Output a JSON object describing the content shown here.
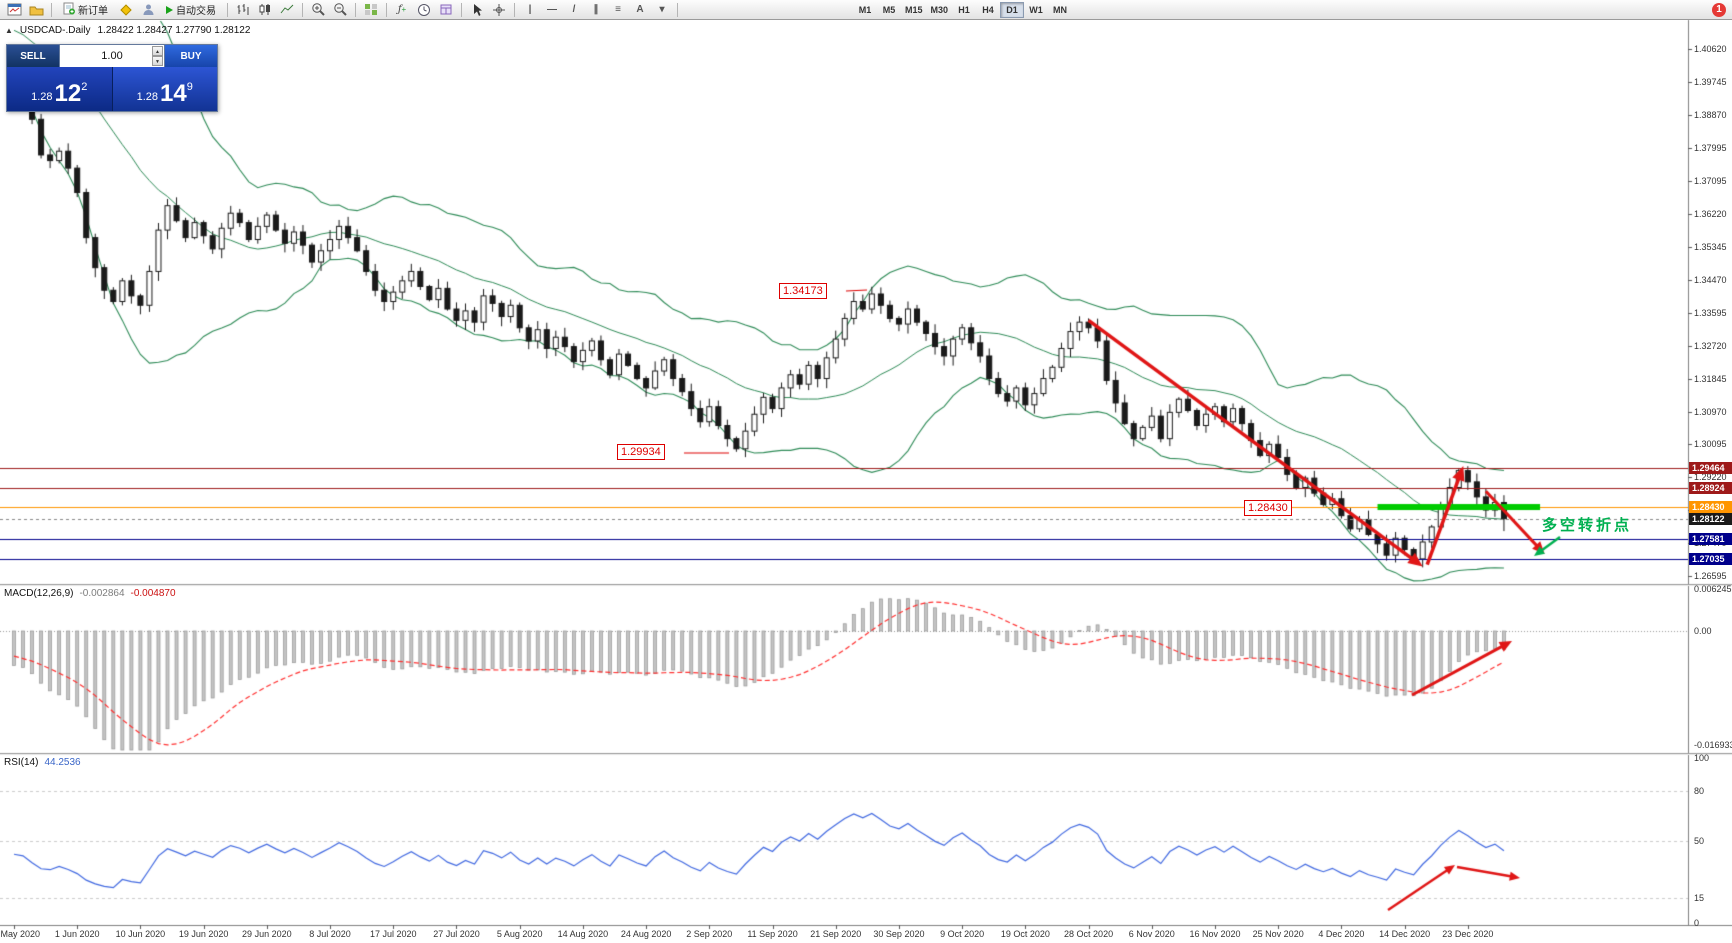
{
  "toolbar": {
    "new_order_label": "新订单",
    "auto_trading_label": "自动交易",
    "timeframes": [
      "M1",
      "M5",
      "M15",
      "M30",
      "H1",
      "H4",
      "D1",
      "W1",
      "MN"
    ],
    "active_timeframe": "D1",
    "notification_badge": "1",
    "tool_glyphs": {
      "vline": "|",
      "hline": "—",
      "trendline": "/",
      "channel": "∥",
      "fibo": "≡",
      "text": "A",
      "arrows": "▾"
    }
  },
  "icons": {
    "collapse": "▲",
    "spin_up": "▲",
    "spin_down": "▼",
    "indicators": "ƒ",
    "indicators_plus": "+"
  },
  "chart": {
    "title": "USDCAD-.Daily",
    "ohlc": "1.28422 1.28427 1.27790 1.28122"
  },
  "trade_panel": {
    "sell_label": "SELL",
    "buy_label": "BUY",
    "volume": "1.00",
    "bid_prefix": "1.28",
    "bid_main": "12",
    "bid_sup": "2",
    "ask_prefix": "1.28",
    "ask_main": "14",
    "ask_sup": "9"
  },
  "price_axis": {
    "labels": [
      "1.40620",
      "1.39745",
      "1.38870",
      "1.37995",
      "1.37095",
      "1.36220",
      "1.35345",
      "1.34470",
      "1.33595",
      "1.32720",
      "1.31845",
      "1.30970",
      "1.30095",
      "1.29220",
      "1.28345",
      "1.27470",
      "1.26595"
    ],
    "tags": [
      {
        "text": "1.29464",
        "price": 1.29464,
        "bg": "#9e1a1a",
        "fg": "#ffffff"
      },
      {
        "text": "1.28924",
        "price": 1.28924,
        "bg": "#9e1a1a",
        "fg": "#ffffff"
      },
      {
        "text": "1.28430",
        "price": 1.2843,
        "bg": "#ff9500",
        "fg": "#ffffff"
      },
      {
        "text": "1.28122",
        "price": 1.28122,
        "bg": "#1a1a1a",
        "fg": "#ffffff"
      },
      {
        "text": "1.27581",
        "price": 1.27581,
        "bg": "#00008b",
        "fg": "#ffffff"
      },
      {
        "text": "1.27035",
        "price": 1.27035,
        "bg": "#00008b",
        "fg": "#ffffff"
      }
    ]
  },
  "hlines": [
    {
      "price": 1.29464,
      "color": "#9e1a1a",
      "style": "solid"
    },
    {
      "price": 1.28924,
      "color": "#9e1a1a",
      "style": "solid"
    },
    {
      "price": 1.2843,
      "color": "#ff9500",
      "style": "solid"
    },
    {
      "price": 1.28122,
      "color": "#888888",
      "style": "dash"
    },
    {
      "price": 1.27581,
      "color": "#00008b",
      "style": "solid"
    },
    {
      "price": 1.27035,
      "color": "#00008b",
      "style": "solid"
    }
  ],
  "annotations": {
    "high_label": "1.34173",
    "low_label": "1.29934",
    "level_label": "1.28430",
    "turning_point": "多空转折点"
  },
  "macd": {
    "label": "MACD(12,26,9)",
    "value1": "-0.002864",
    "value2": "-0.004870",
    "axis": [
      "0.006245",
      "0.00",
      "-0.016933"
    ]
  },
  "rsi": {
    "label": "RSI(14)",
    "value": "44.2536",
    "axis": [
      "100",
      "80",
      "50",
      "15",
      "0"
    ],
    "levels": [
      80,
      50,
      15
    ]
  },
  "dates": [
    "22 May 2020",
    "1 Jun 2020",
    "10 Jun 2020",
    "19 Jun 2020",
    "29 Jun 2020",
    "8 Jul 2020",
    "17 Jul 2020",
    "27 Jul 2020",
    "5 Aug 2020",
    "14 Aug 2020",
    "24 Aug 2020",
    "2 Sep 2020",
    "11 Sep 2020",
    "21 Sep 2020",
    "30 Sep 2020",
    "9 Oct 2020",
    "19 Oct 2020",
    "28 Oct 2020",
    "6 Nov 2020",
    "16 Nov 2020",
    "25 Nov 2020",
    "4 Dec 2020",
    "14 Dec 2020",
    "23 Dec 2020"
  ],
  "chart_data": {
    "type": "candlestick",
    "symbol": "USDCAD",
    "period": "Daily",
    "displayed_ohlc": {
      "open": "1.28422",
      "high": "1.28427",
      "low": "1.27790",
      "close": "1.28122"
    },
    "y_range": [
      1.26595,
      1.4062
    ],
    "x_labels": [
      "22 May 2020",
      "1 Jun 2020",
      "10 Jun 2020",
      "19 Jun 2020",
      "29 Jun 2020",
      "8 Jul 2020",
      "17 Jul 2020",
      "27 Jul 2020",
      "5 Aug 2020",
      "14 Aug 2020",
      "24 Aug 2020",
      "2 Sep 2020",
      "11 Sep 2020",
      "21 Sep 2020",
      "30 Sep 2020",
      "9 Oct 2020",
      "19 Oct 2020",
      "28 Oct 2020",
      "6 Nov 2020",
      "16 Nov 2020",
      "25 Nov 2020",
      "4 Dec 2020",
      "14 Dec 2020",
      "23 Dec 2020"
    ],
    "closes": [
      1.399,
      1.397,
      1.3875,
      1.378,
      1.3765,
      1.379,
      1.3745,
      1.368,
      1.356,
      1.348,
      1.342,
      1.339,
      1.3445,
      1.3405,
      1.338,
      1.347,
      1.358,
      1.3645,
      1.3605,
      1.356,
      1.36,
      1.3565,
      1.353,
      1.3585,
      1.3625,
      1.36,
      1.3555,
      1.359,
      1.362,
      1.358,
      1.3545,
      1.3575,
      1.354,
      1.3495,
      1.3525,
      1.3555,
      1.359,
      1.356,
      1.3525,
      1.347,
      1.342,
      1.339,
      1.3415,
      1.3445,
      1.347,
      1.343,
      1.3395,
      1.3425,
      1.337,
      1.334,
      1.3365,
      1.3335,
      1.3405,
      1.3385,
      1.335,
      1.338,
      1.332,
      1.3285,
      1.3315,
      1.3265,
      1.3295,
      1.327,
      1.323,
      1.326,
      1.3285,
      1.3235,
      1.3195,
      1.325,
      1.322,
      1.3185,
      1.316,
      1.3205,
      1.3235,
      1.3185,
      1.315,
      1.3105,
      1.307,
      1.311,
      1.306,
      1.3025,
      1.2998,
      1.3045,
      1.309,
      1.3135,
      1.3105,
      1.316,
      1.3195,
      1.317,
      1.322,
      1.3185,
      1.324,
      1.329,
      1.3345,
      1.339,
      1.337,
      1.341,
      1.338,
      1.3345,
      1.333,
      1.337,
      1.3335,
      1.3305,
      1.327,
      1.3245,
      1.329,
      1.332,
      1.328,
      1.3245,
      1.3185,
      1.3145,
      1.3125,
      1.316,
      1.3115,
      1.3145,
      1.3185,
      1.3215,
      1.3265,
      1.331,
      1.3335,
      1.332,
      1.3285,
      1.318,
      1.312,
      1.3065,
      1.3025,
      1.3055,
      1.3085,
      1.3025,
      1.3095,
      1.313,
      1.31,
      1.306,
      1.309,
      1.311,
      1.307,
      1.3105,
      1.3065,
      1.302,
      1.298,
      1.301,
      1.2975,
      1.293,
      1.2895,
      1.292,
      1.288,
      1.285,
      1.2865,
      1.282,
      1.2785,
      1.281,
      1.277,
      1.2745,
      1.2715,
      1.276,
      1.273,
      1.2705,
      1.275,
      1.279,
      1.2845,
      1.2895,
      1.294,
      1.291,
      1.287,
      1.2835,
      1.2855,
      1.2812
    ],
    "overlays": [
      "Bollinger Bands (upper/middle/lower, green)"
    ],
    "key_levels": [
      1.29464,
      1.28924,
      1.2843,
      1.27581,
      1.27035
    ],
    "marked_high": 1.34173,
    "marked_low": 1.29934,
    "support_level": 1.2843,
    "macd": {
      "params": "12,26,9",
      "current": -0.002864,
      "signal": -0.00487,
      "range": [
        -0.016933,
        0.006245
      ]
    },
    "rsi": {
      "params": "14",
      "current": 44.2536,
      "range": [
        0,
        100
      ]
    }
  }
}
